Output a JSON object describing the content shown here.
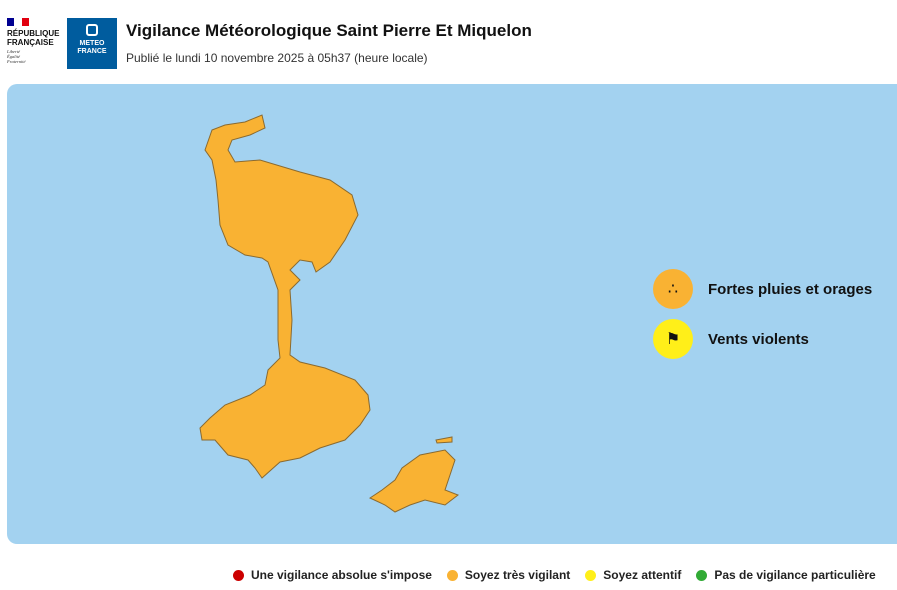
{
  "header": {
    "republic_logo": "RÉPUBLIQUE FRANÇAISE",
    "republic_motto": "Liberté Égalité Fraternité",
    "meteo_logo": "METEO FRANCE",
    "title": "Vigilance Météorologique Saint Pierre Et Miquelon",
    "published": "Publié le lundi 10 novembre 2025 à 05h37 (heure locale)"
  },
  "map": {
    "region_color": "#f9b233",
    "sea_color": "#a3d2f0",
    "level": "Soyez très vigilant"
  },
  "phenomena": [
    {
      "label": "Fortes pluies et orages",
      "icon": "rain-storm-icon",
      "color": "#f9b233"
    },
    {
      "label": "Vents violents",
      "icon": "windsock-icon",
      "color": "#ffef19"
    }
  ],
  "legend": [
    {
      "label": "Une vigilance absolue s'impose",
      "color": "#cc0000"
    },
    {
      "label": "Soyez très vigilant",
      "color": "#f9b233"
    },
    {
      "label": "Soyez attentif",
      "color": "#ffef19"
    },
    {
      "label": "Pas de vigilance particulière",
      "color": "#31aa35"
    }
  ]
}
